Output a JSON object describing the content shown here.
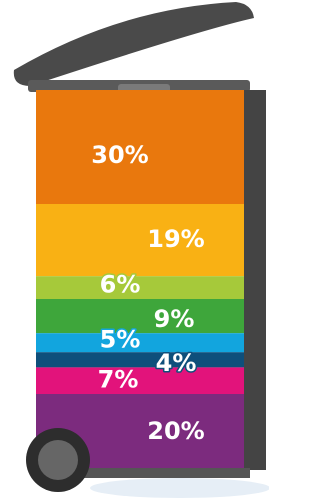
{
  "chart_data": {
    "type": "stacked_bar",
    "series": [
      {
        "color": "#e9780d",
        "values": [
          30
        ],
        "value_labels": [
          "30%"
        ]
      },
      {
        "color": "#f9b114",
        "values": [
          19
        ],
        "value_labels": [
          "19%"
        ]
      },
      {
        "color": "#a6c93a",
        "values": [
          6
        ],
        "value_labels": [
          "6%"
        ]
      },
      {
        "color": "#3ea63b",
        "values": [
          9
        ],
        "value_labels": [
          "9%"
        ]
      },
      {
        "color": "#12a5de",
        "values": [
          5
        ],
        "value_labels": [
          "5%"
        ]
      },
      {
        "color": "#0e4f7b",
        "values": [
          4
        ],
        "value_labels": [
          "4%"
        ]
      },
      {
        "color": "#e2137b",
        "values": [
          7
        ],
        "value_labels": [
          "7%"
        ]
      },
      {
        "color": "#7c2b7e",
        "values": [
          20
        ],
        "value_labels": [
          "20%"
        ]
      }
    ]
  }
}
